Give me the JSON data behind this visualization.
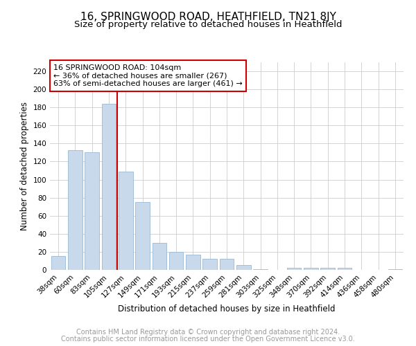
{
  "title": "16, SPRINGWOOD ROAD, HEATHFIELD, TN21 8JY",
  "subtitle": "Size of property relative to detached houses in Heathfield",
  "xlabel": "Distribution of detached houses by size in Heathfield",
  "ylabel": "Number of detached properties",
  "categories": [
    "38sqm",
    "60sqm",
    "83sqm",
    "105sqm",
    "127sqm",
    "149sqm",
    "171sqm",
    "193sqm",
    "215sqm",
    "237sqm",
    "259sqm",
    "281sqm",
    "303sqm",
    "325sqm",
    "348sqm",
    "370sqm",
    "392sqm",
    "414sqm",
    "436sqm",
    "458sqm",
    "480sqm"
  ],
  "values": [
    15,
    133,
    130,
    184,
    109,
    75,
    30,
    20,
    17,
    12,
    12,
    5,
    1,
    0,
    2,
    2,
    2,
    2,
    0,
    0,
    1
  ],
  "bar_color": "#c8d9ec",
  "bar_edge_color": "#9ab8d4",
  "vline_x": 3.5,
  "vline_color": "#cc0000",
  "ylim": [
    0,
    230
  ],
  "yticks": [
    0,
    20,
    40,
    60,
    80,
    100,
    120,
    140,
    160,
    180,
    200,
    220
  ],
  "annotation_title": "16 SPRINGWOOD ROAD: 104sqm",
  "annotation_line1": "← 36% of detached houses are smaller (267)",
  "annotation_line2": "63% of semi-detached houses are larger (461) →",
  "annotation_box_color": "#ffffff",
  "annotation_border_color": "#cc0000",
  "footer_line1": "Contains HM Land Registry data © Crown copyright and database right 2024.",
  "footer_line2": "Contains public sector information licensed under the Open Government Licence v3.0.",
  "bg_color": "#ffffff",
  "grid_color": "#cccccc",
  "title_fontsize": 11,
  "subtitle_fontsize": 9.5,
  "axis_label_fontsize": 8.5,
  "tick_fontsize": 7.5,
  "footer_fontsize": 7,
  "annotation_fontsize": 8
}
